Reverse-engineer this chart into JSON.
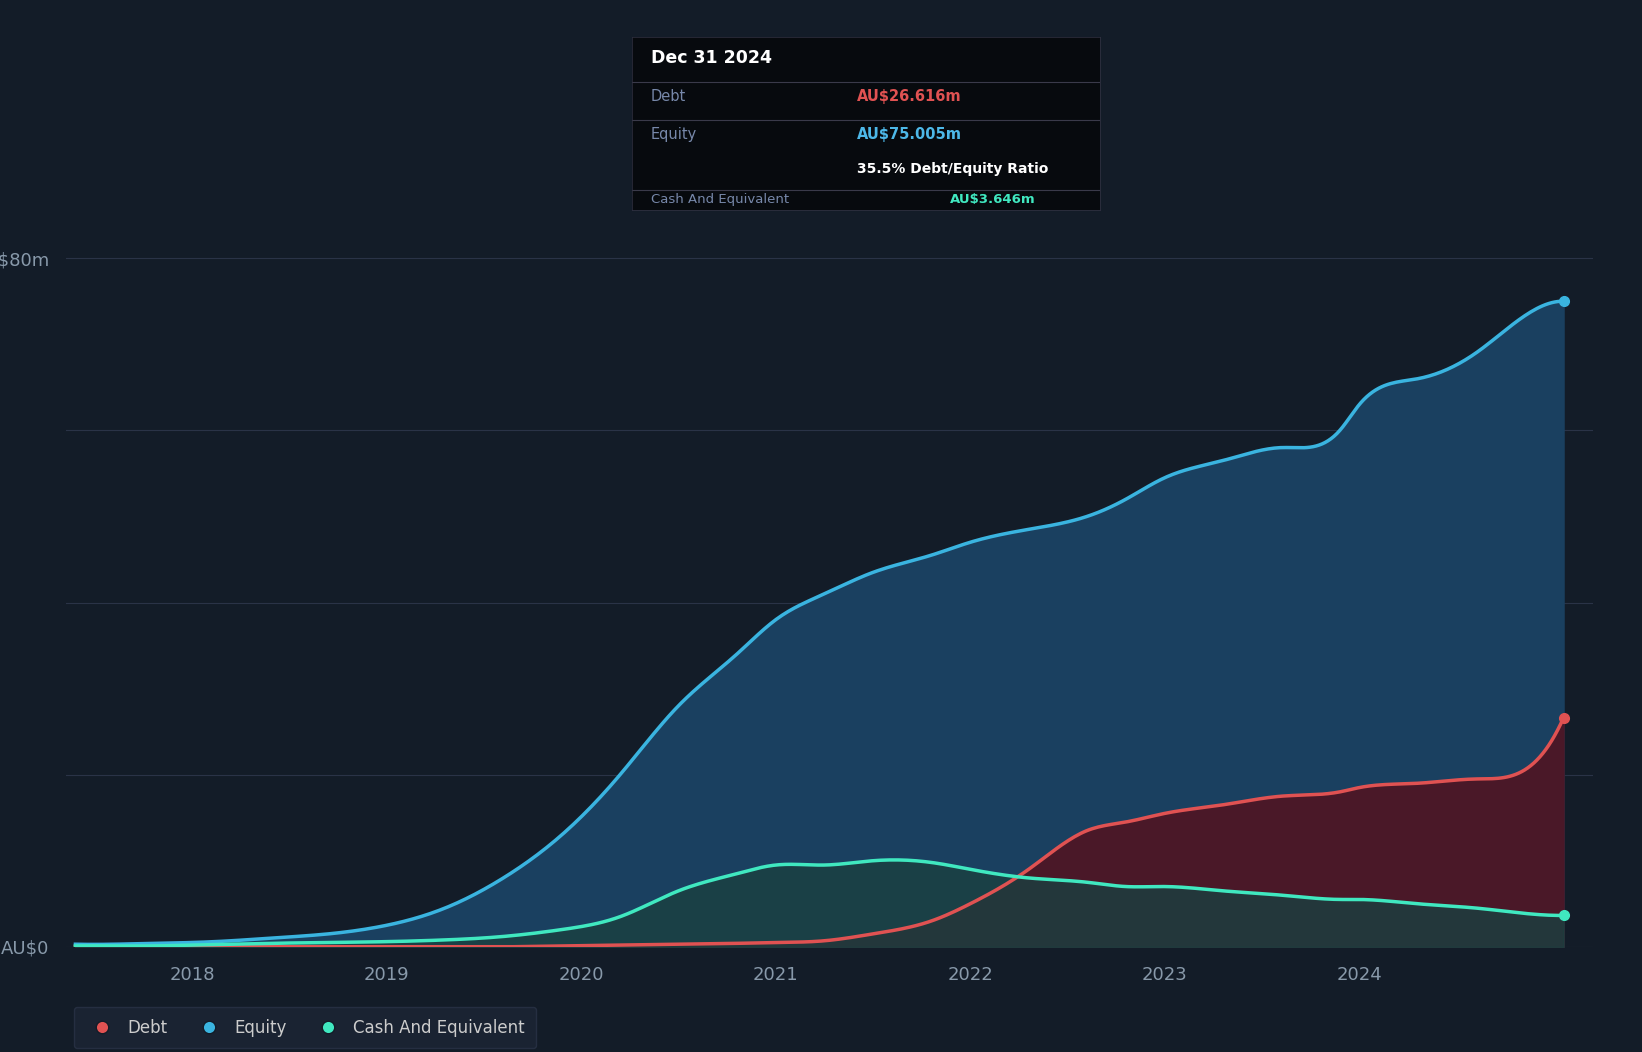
{
  "background_color": "#131c28",
  "plot_bg_color": "#131c28",
  "grid_color": "#2a3347",
  "ylabel": "",
  "xlabel": "",
  "ylim": [
    0,
    88
  ],
  "legend_labels": [
    "Debt",
    "Equity",
    "Cash And Equivalent"
  ],
  "legend_colors": [
    "#e05252",
    "#4db8e8",
    "#4de8c8"
  ],
  "tooltip_title": "Dec 31 2024",
  "tooltip_debt": "AU$26.616m",
  "tooltip_equity": "AU$75.005m",
  "tooltip_ratio": "35.5% Debt/Equity Ratio",
  "tooltip_cash": "AU$3.646m",
  "debt_color": "#e05252",
  "equity_color": "#3ab4e0",
  "cash_color": "#40e8c0",
  "equity_fill_color": "#1a4060",
  "debt_fill_color": "#4a1828",
  "cash_fill_color": "#1a4040",
  "date_nums": [
    2017.4,
    2017.6,
    2017.8,
    2018.0,
    2018.2,
    2018.4,
    2018.7,
    2019.0,
    2019.3,
    2019.6,
    2019.9,
    2020.2,
    2020.5,
    2020.8,
    2021.0,
    2021.25,
    2021.5,
    2021.8,
    2022.0,
    2022.3,
    2022.6,
    2022.8,
    2023.0,
    2023.3,
    2023.6,
    2023.9,
    2024.0,
    2024.3,
    2024.6,
    2024.8,
    2025.05
  ],
  "equity": [
    0.3,
    0.3,
    0.4,
    0.5,
    0.7,
    1.0,
    1.5,
    2.5,
    4.5,
    8.0,
    13.0,
    20.0,
    28.0,
    34.0,
    38.0,
    41.0,
    43.5,
    45.5,
    47.0,
    48.5,
    50.0,
    52.0,
    54.5,
    56.5,
    58.0,
    60.0,
    63.0,
    66.0,
    69.0,
    72.5,
    75.005
  ],
  "debt": [
    0.0,
    0.0,
    0.0,
    0.0,
    0.0,
    0.0,
    0.0,
    0.0,
    0.0,
    0.0,
    0.1,
    0.2,
    0.3,
    0.4,
    0.5,
    0.7,
    1.5,
    3.0,
    5.0,
    9.0,
    13.5,
    14.5,
    15.5,
    16.5,
    17.5,
    18.0,
    18.5,
    19.0,
    19.5,
    20.0,
    26.616
  ],
  "cash": [
    0.1,
    0.1,
    0.1,
    0.2,
    0.3,
    0.4,
    0.5,
    0.6,
    0.8,
    1.2,
    2.0,
    3.5,
    6.5,
    8.5,
    9.5,
    9.5,
    10.0,
    9.8,
    9.0,
    8.0,
    7.5,
    7.0,
    7.0,
    6.5,
    6.0,
    5.5,
    5.5,
    5.0,
    4.5,
    4.0,
    3.646
  ]
}
